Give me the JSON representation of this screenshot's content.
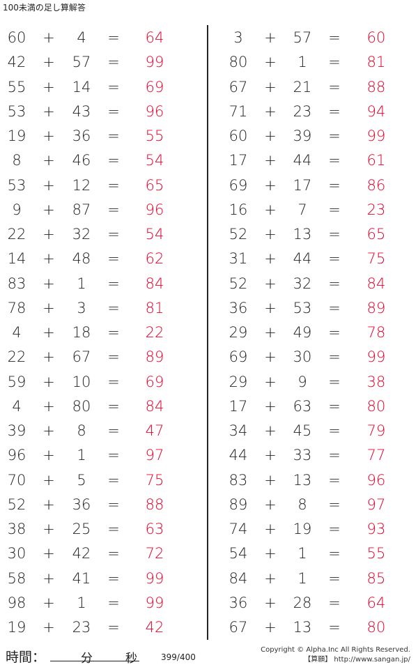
{
  "title": "100未満の足し算解答",
  "operator": "+",
  "equals": "=",
  "colors": {
    "answer": "#e8002a",
    "text": "#222222"
  },
  "left": [
    [
      "60",
      "4",
      "64"
    ],
    [
      "42",
      "57",
      "99"
    ],
    [
      "55",
      "14",
      "69"
    ],
    [
      "53",
      "43",
      "96"
    ],
    [
      "19",
      "36",
      "55"
    ],
    [
      "8",
      "46",
      "54"
    ],
    [
      "53",
      "12",
      "65"
    ],
    [
      "9",
      "87",
      "96"
    ],
    [
      "22",
      "32",
      "54"
    ],
    [
      "14",
      "48",
      "62"
    ],
    [
      "83",
      "1",
      "84"
    ],
    [
      "78",
      "3",
      "81"
    ],
    [
      "4",
      "18",
      "22"
    ],
    [
      "22",
      "67",
      "89"
    ],
    [
      "59",
      "10",
      "69"
    ],
    [
      "4",
      "80",
      "84"
    ],
    [
      "39",
      "8",
      "47"
    ],
    [
      "96",
      "1",
      "97"
    ],
    [
      "70",
      "5",
      "75"
    ],
    [
      "52",
      "36",
      "88"
    ],
    [
      "38",
      "25",
      "63"
    ],
    [
      "30",
      "42",
      "72"
    ],
    [
      "58",
      "41",
      "99"
    ],
    [
      "98",
      "1",
      "99"
    ],
    [
      "19",
      "23",
      "42"
    ]
  ],
  "right": [
    [
      "3",
      "57",
      "60"
    ],
    [
      "80",
      "1",
      "81"
    ],
    [
      "67",
      "21",
      "88"
    ],
    [
      "71",
      "23",
      "94"
    ],
    [
      "60",
      "39",
      "99"
    ],
    [
      "17",
      "44",
      "61"
    ],
    [
      "69",
      "17",
      "86"
    ],
    [
      "16",
      "7",
      "23"
    ],
    [
      "52",
      "13",
      "65"
    ],
    [
      "31",
      "44",
      "75"
    ],
    [
      "52",
      "32",
      "84"
    ],
    [
      "36",
      "53",
      "89"
    ],
    [
      "29",
      "49",
      "78"
    ],
    [
      "69",
      "30",
      "99"
    ],
    [
      "29",
      "9",
      "38"
    ],
    [
      "17",
      "63",
      "80"
    ],
    [
      "34",
      "45",
      "79"
    ],
    [
      "44",
      "33",
      "77"
    ],
    [
      "83",
      "13",
      "96"
    ],
    [
      "89",
      "8",
      "97"
    ],
    [
      "74",
      "19",
      "93"
    ],
    [
      "54",
      "1",
      "55"
    ],
    [
      "84",
      "1",
      "85"
    ],
    [
      "36",
      "28",
      "64"
    ],
    [
      "67",
      "13",
      "80"
    ]
  ],
  "footer": {
    "time_label": "時間：",
    "minutes": "分",
    "seconds": "秒",
    "page": "399/400",
    "copyright": "Copyright © Alpha.Inc All Rights Reserved.",
    "site": "【算願】 http://www.sangan.jp/"
  }
}
